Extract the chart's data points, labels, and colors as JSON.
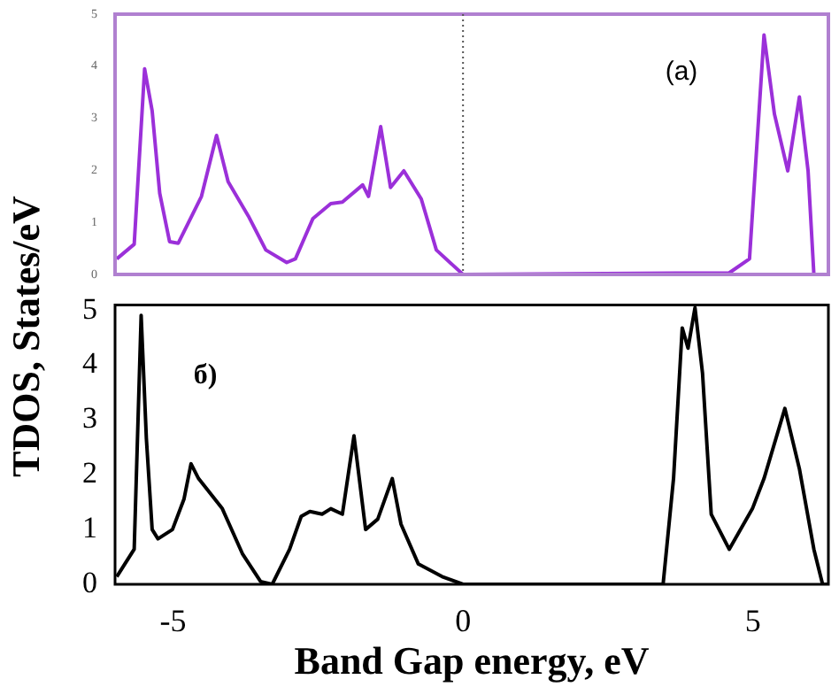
{
  "chart_data": [
    {
      "type": "line",
      "tick_labels": "y",
      "xlim": [
        -6,
        6.3
      ],
      "ylim": [
        0,
        5
      ],
      "yticks": [
        0,
        1,
        2,
        3,
        4,
        5
      ],
      "grid": false,
      "legend": false,
      "marker": "none",
      "line_style": "solid",
      "annotations": [
        "(a)"
      ],
      "ref_lines": [
        {
          "axis": "x",
          "value": 0,
          "color": "#555555",
          "line_style": "dotted"
        }
      ],
      "series": [
        {
          "color": "#9b30d9",
          "x": [
            -5.97,
            -5.67,
            -5.49,
            -5.36,
            -5.23,
            -5.06,
            -4.91,
            -4.51,
            -4.25,
            -4.05,
            -3.7,
            -3.4,
            -3.04,
            -2.89,
            -2.59,
            -2.28,
            -2.08,
            -1.73,
            -1.63,
            -1.42,
            -1.25,
            -1.02,
            -0.72,
            -0.46,
            0,
            4.59,
            4.94,
            5.19,
            5.37,
            5.6,
            5.8,
            5.95,
            6.05,
            6.3
          ],
          "values": [
            0.3,
            0.58,
            3.95,
            3.14,
            1.56,
            0.63,
            0.6,
            1.5,
            2.67,
            1.78,
            1.12,
            0.47,
            0.23,
            0.3,
            1.07,
            1.36,
            1.39,
            1.72,
            1.5,
            2.84,
            1.67,
            1.99,
            1.45,
            0.47,
            0,
            0.03,
            0.3,
            4.6,
            3.08,
            1.99,
            3.41,
            1.99,
            0,
            0
          ]
        }
      ]
    },
    {
      "type": "line",
      "xlabel": "Band Gap energy, eV",
      "ylabel": "TDOS, States/eV",
      "xlim": [
        -6,
        6.3
      ],
      "xticks": [
        -5,
        0,
        5
      ],
      "ylim": [
        0,
        5.1
      ],
      "yticks": [
        0,
        1,
        2,
        3,
        4,
        5
      ],
      "grid": false,
      "legend": false,
      "marker": "none",
      "line_style": "solid",
      "annotations": [
        "б)"
      ],
      "series": [
        {
          "color": "#000000",
          "x": [
            -5.97,
            -5.67,
            -5.55,
            -5.46,
            -5.36,
            -5.26,
            -5.01,
            -4.81,
            -4.69,
            -4.56,
            -4.15,
            -3.8,
            -3.49,
            -3.29,
            -2.99,
            -2.79,
            -2.64,
            -2.43,
            -2.28,
            -2.08,
            -1.88,
            -1.68,
            -1.47,
            -1.22,
            -1.07,
            -0.77,
            -0.36,
            0,
            3.45,
            3.63,
            3.78,
            3.88,
            4.0,
            4.13,
            4.28,
            4.59,
            4.99,
            5.19,
            5.55,
            5.8,
            6.05,
            6.2,
            6.3
          ],
          "values": [
            0.14,
            0.64,
            4.91,
            2.66,
            1.0,
            0.83,
            1.0,
            1.56,
            2.2,
            1.93,
            1.38,
            0.55,
            0.05,
            0,
            0.64,
            1.24,
            1.33,
            1.28,
            1.38,
            1.28,
            2.71,
            1.0,
            1.19,
            1.93,
            1.1,
            0.37,
            0.14,
            0,
            0,
            1.93,
            4.68,
            4.31,
            5.05,
            3.85,
            1.28,
            0.64,
            1.38,
            1.93,
            3.21,
            2.11,
            0.64,
            0,
            0
          ]
        }
      ]
    }
  ]
}
